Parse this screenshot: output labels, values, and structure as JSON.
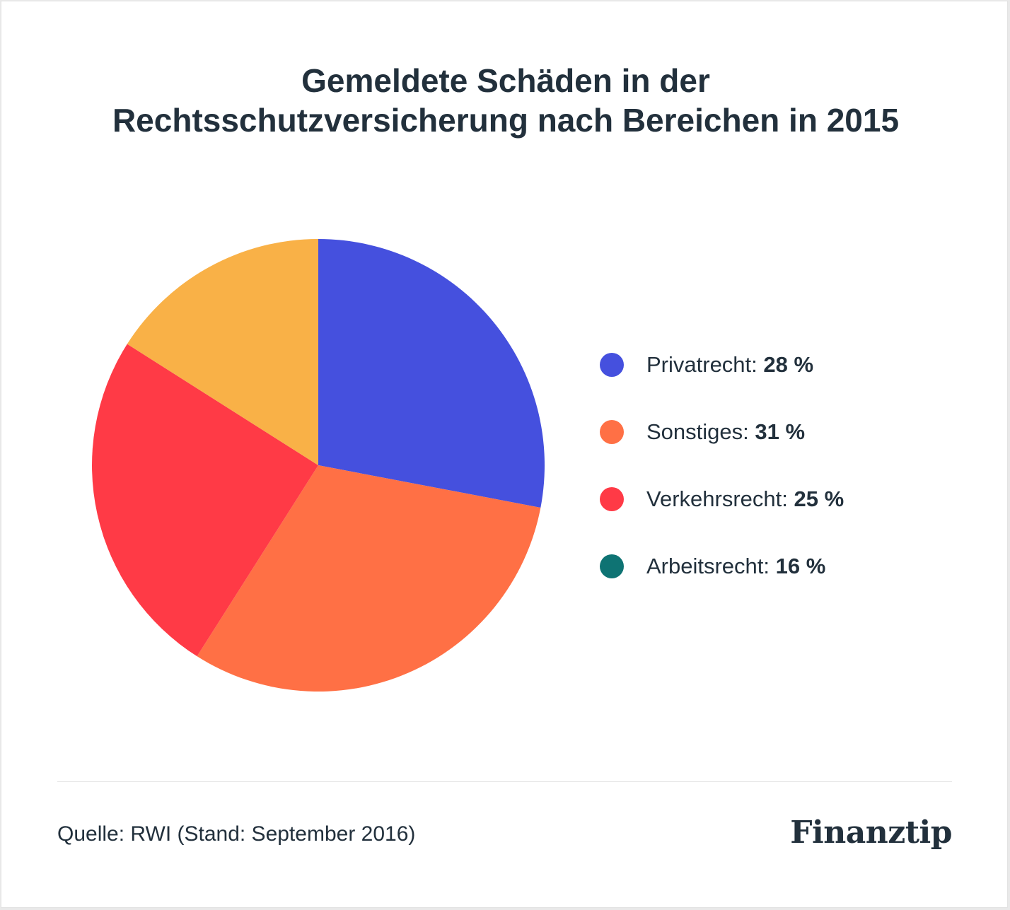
{
  "chart_data": {
    "type": "pie",
    "title": "Gemeldete Schäden in der Rechtsschutzversicherung nach Bereichen in 2015",
    "title_lines": [
      "Gemeldete Schäden in der",
      "Rechtsschutzversicherung nach Bereichen in 2015"
    ],
    "slices": [
      {
        "label": "Privatrecht",
        "value": 28,
        "value_label": "28 %",
        "color": "#4550de"
      },
      {
        "label": "Sonstiges",
        "value": 31,
        "value_label": "31 %",
        "color": "#ff7045"
      },
      {
        "label": "Verkehrsrecht",
        "value": 25,
        "value_label": "25 %",
        "color": "#ff3a46"
      },
      {
        "label": "Arbeitsrecht",
        "value": 16,
        "value_label": "16 %",
        "color": "#0e7373",
        "pie_color": "#f9b147"
      }
    ],
    "legend_position": "right",
    "start_angle_deg": 0,
    "direction": "clockwise"
  },
  "footer": {
    "source": "Quelle: RWI (Stand: September 2016)",
    "logo": "Finanztip"
  }
}
